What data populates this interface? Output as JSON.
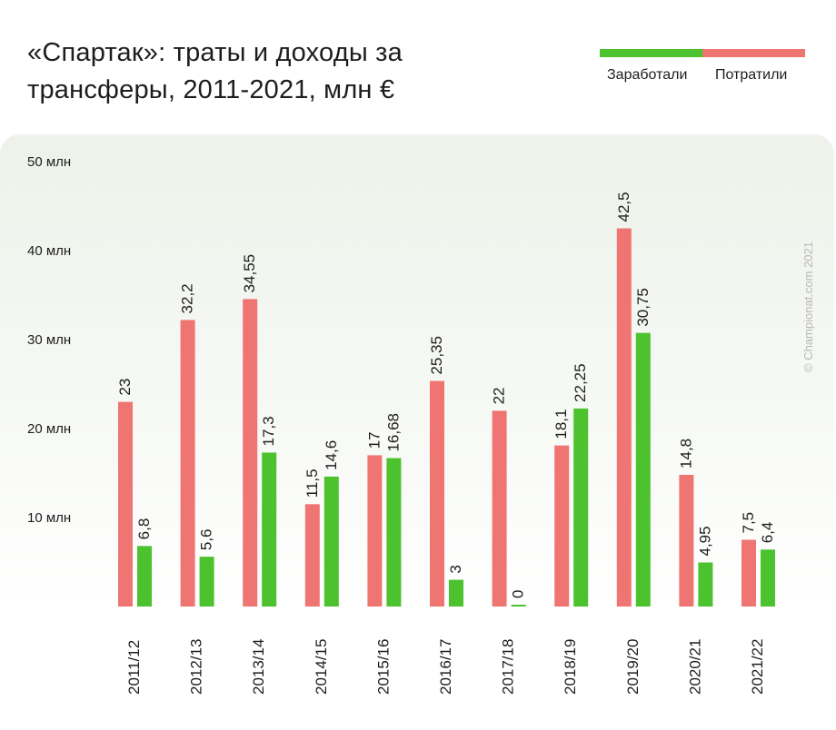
{
  "title": "«Спартак»: траты и доходы за трансферы, 2011-2021, млн €",
  "legend": {
    "earned_label": "Заработали",
    "spent_label": "Потратили"
  },
  "credit": "© Championat.com 2021",
  "colors": {
    "earned": "#4cc22e",
    "spent": "#ef7573",
    "text": "#1d1d1d",
    "panel": "#eef2ea"
  },
  "chart_data": {
    "type": "bar",
    "title": "«Спартак»: траты и доходы за трансферы, 2011-2021, млн €",
    "categories": [
      "2011/12",
      "2012/13",
      "2013/14",
      "2014/15",
      "2015/16",
      "2016/17",
      "2017/18",
      "2018/19",
      "2019/20",
      "2020/21",
      "2021/22"
    ],
    "series": [
      {
        "name": "Потратили",
        "color": "#ef7573",
        "values": [
          23,
          32.2,
          34.55,
          11.5,
          17,
          25.35,
          22,
          18.1,
          42.5,
          14.8,
          7.5
        ],
        "labels": [
          "23",
          "32,2",
          "34,55",
          "11,5",
          "17",
          "25,35",
          "22",
          "18,1",
          "42,5",
          "14,8",
          "7,5"
        ]
      },
      {
        "name": "Заработали",
        "color": "#4cc22e",
        "values": [
          6.8,
          5.6,
          17.3,
          14.6,
          16.68,
          3,
          0,
          22.25,
          30.75,
          4.95,
          6.4
        ],
        "labels": [
          "6,8",
          "5,6",
          "17,3",
          "14,6",
          "16,68",
          "3",
          "0",
          "22,25",
          "30,75",
          "4,95",
          "6,4"
        ]
      }
    ],
    "ylim": [
      0,
      50
    ],
    "yticks": [
      10,
      20,
      30,
      40,
      50
    ],
    "ytick_labels": [
      "10 млн",
      "20 млн",
      "30 млн",
      "40 млн",
      "50 млн"
    ],
    "xlabel": "",
    "ylabel": "",
    "grid": false,
    "legend_position": "top-right"
  }
}
